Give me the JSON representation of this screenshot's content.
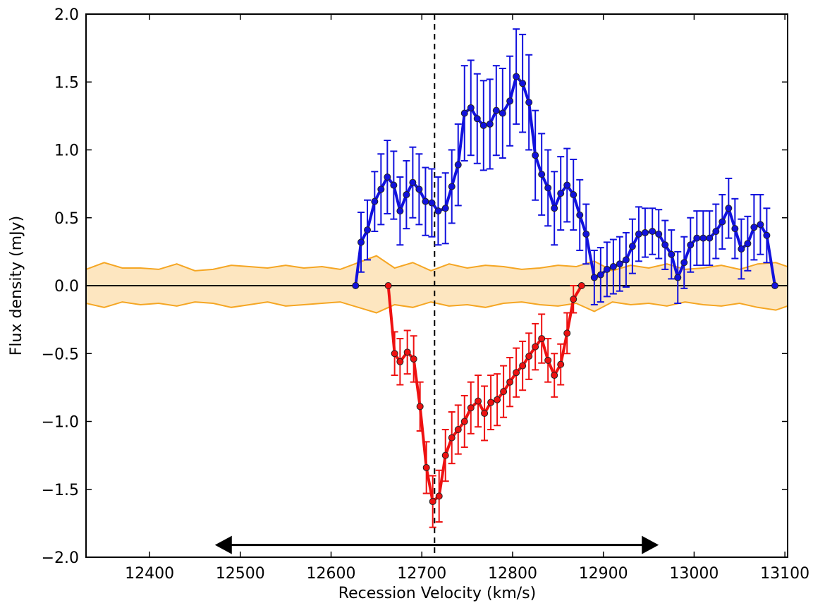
{
  "chart_data": {
    "type": "line",
    "xlabel": "Recession Velocity (km/s)",
    "ylabel": "Flux density (mJy)",
    "xlim": [
      12330,
      13103
    ],
    "ylim": [
      -2.0,
      2.0
    ],
    "xticks": [
      12400,
      12500,
      12600,
      12700,
      12800,
      12900,
      13000,
      13100
    ],
    "yticks": [
      {
        "value": -2.0,
        "label": "−2.0"
      },
      {
        "value": -1.5,
        "label": "−1.5"
      },
      {
        "value": -1.0,
        "label": "−1.0"
      },
      {
        "value": -0.5,
        "label": "−0.5"
      },
      {
        "value": 0.0,
        "label": "0.0"
      },
      0.5,
      {
        "value": 1.0,
        "label": "1.0"
      },
      1.5,
      {
        "value": 2.0,
        "label": "2.0"
      }
    ],
    "hline": 0,
    "vline": 12714,
    "arrow": {
      "x": [
        12472,
        12961
      ],
      "y": -1.91
    },
    "band": {
      "color": "#f5a623",
      "fill": "#fde6c0",
      "x": [
        12330,
        12350,
        12370,
        12390,
        12410,
        12430,
        12450,
        12470,
        12490,
        12510,
        12530,
        12550,
        12570,
        12590,
        12610,
        12630,
        12650,
        12670,
        12690,
        12710,
        12730,
        12750,
        12770,
        12790,
        12810,
        12830,
        12850,
        12870,
        12890,
        12910,
        12930,
        12950,
        12970,
        12990,
        13010,
        13030,
        13050,
        13070,
        13090,
        13103
      ],
      "upper": [
        0.12,
        0.17,
        0.13,
        0.13,
        0.12,
        0.16,
        0.11,
        0.12,
        0.15,
        0.14,
        0.13,
        0.15,
        0.13,
        0.14,
        0.12,
        0.17,
        0.22,
        0.13,
        0.17,
        0.11,
        0.16,
        0.13,
        0.15,
        0.14,
        0.12,
        0.13,
        0.15,
        0.14,
        0.18,
        0.11,
        0.15,
        0.13,
        0.16,
        0.12,
        0.13,
        0.15,
        0.12,
        0.16,
        0.17,
        0.14
      ],
      "lower": [
        -0.13,
        -0.16,
        -0.12,
        -0.14,
        -0.13,
        -0.15,
        -0.12,
        -0.13,
        -0.16,
        -0.14,
        -0.12,
        -0.15,
        -0.14,
        -0.13,
        -0.12,
        -0.16,
        -0.2,
        -0.14,
        -0.16,
        -0.12,
        -0.15,
        -0.14,
        -0.16,
        -0.13,
        -0.12,
        -0.14,
        -0.15,
        -0.13,
        -0.19,
        -0.12,
        -0.14,
        -0.13,
        -0.15,
        -0.12,
        -0.14,
        -0.15,
        -0.13,
        -0.16,
        -0.18,
        -0.15
      ]
    },
    "series": [
      {
        "color": "#1111dd",
        "x": [
          12627,
          12633,
          12640,
          12648,
          12655,
          12662,
          12669,
          12676,
          12683,
          12690,
          12697,
          12704,
          12711,
          12718,
          12726,
          12733,
          12740,
          12747,
          12754,
          12761,
          12768,
          12775,
          12782,
          12789,
          12797,
          12804,
          12811,
          12818,
          12825,
          12832,
          12839,
          12846,
          12853,
          12860,
          12867,
          12874,
          12881,
          12890,
          12897,
          12904,
          12911,
          12918,
          12925,
          12932,
          12939,
          12946,
          12954,
          12961,
          12968,
          12975,
          12982,
          12989,
          12996,
          13003,
          13010,
          13017,
          13024,
          13031,
          13038,
          13045,
          13052,
          13059,
          13066,
          13073,
          13080,
          13089
        ],
        "values": [
          0,
          0.32,
          0.41,
          0.62,
          0.71,
          0.8,
          0.74,
          0.55,
          0.67,
          0.76,
          0.71,
          0.62,
          0.61,
          0.55,
          0.57,
          0.73,
          0.89,
          1.27,
          1.31,
          1.23,
          1.18,
          1.19,
          1.29,
          1.27,
          1.36,
          1.54,
          1.49,
          1.35,
          0.96,
          0.82,
          0.72,
          0.57,
          0.68,
          0.74,
          0.67,
          0.52,
          0.38,
          0.06,
          0.08,
          0.12,
          0.14,
          0.16,
          0.19,
          0.29,
          0.38,
          0.39,
          0.4,
          0.38,
          0.3,
          0.23,
          0.06,
          0.17,
          0.3,
          0.35,
          0.35,
          0.35,
          0.4,
          0.47,
          0.57,
          0.42,
          0.27,
          0.31,
          0.43,
          0.45,
          0.37,
          0
        ],
        "errors": [
          null,
          0.22,
          0.22,
          0.22,
          0.26,
          0.27,
          0.25,
          0.25,
          0.25,
          0.26,
          0.26,
          0.25,
          0.25,
          0.25,
          0.26,
          0.27,
          0.3,
          0.35,
          0.35,
          0.33,
          0.33,
          0.33,
          0.33,
          0.33,
          0.33,
          0.35,
          0.36,
          0.35,
          0.33,
          0.3,
          0.28,
          0.27,
          0.27,
          0.27,
          0.26,
          0.26,
          0.22,
          0.2,
          0.2,
          0.2,
          0.2,
          0.2,
          0.2,
          0.2,
          0.2,
          0.18,
          0.17,
          0.18,
          0.18,
          0.18,
          0.19,
          0.19,
          0.2,
          0.2,
          0.2,
          0.2,
          0.2,
          0.2,
          0.22,
          0.22,
          0.22,
          0.2,
          0.24,
          0.22,
          0.2,
          null
        ]
      },
      {
        "color": "#ee1111",
        "x": [
          12663,
          12670,
          12676,
          12684,
          12691,
          12698,
          12705,
          12712,
          12719,
          12726,
          12733,
          12740,
          12747,
          12754,
          12762,
          12769,
          12776,
          12783,
          12790,
          12797,
          12804,
          12811,
          12818,
          12825,
          12832,
          12839,
          12846,
          12853,
          12860,
          12867,
          12876
        ],
        "values": [
          0,
          -0.5,
          -0.56,
          -0.49,
          -0.54,
          -0.89,
          -1.34,
          -1.59,
          -1.55,
          -1.25,
          -1.12,
          -1.06,
          -1.0,
          -0.9,
          -0.85,
          -0.94,
          -0.86,
          -0.84,
          -0.78,
          -0.71,
          -0.64,
          -0.59,
          -0.52,
          -0.45,
          -0.39,
          -0.55,
          -0.66,
          -0.58,
          -0.35,
          -0.1,
          0
        ],
        "errors": [
          null,
          0.16,
          0.17,
          0.16,
          0.17,
          0.18,
          0.19,
          0.19,
          0.19,
          0.19,
          0.19,
          0.18,
          0.19,
          0.19,
          0.19,
          0.2,
          0.2,
          0.19,
          0.19,
          0.18,
          0.18,
          0.18,
          0.17,
          0.17,
          0.18,
          0.16,
          0.16,
          0.15,
          0.15,
          0.1,
          null
        ]
      }
    ]
  }
}
